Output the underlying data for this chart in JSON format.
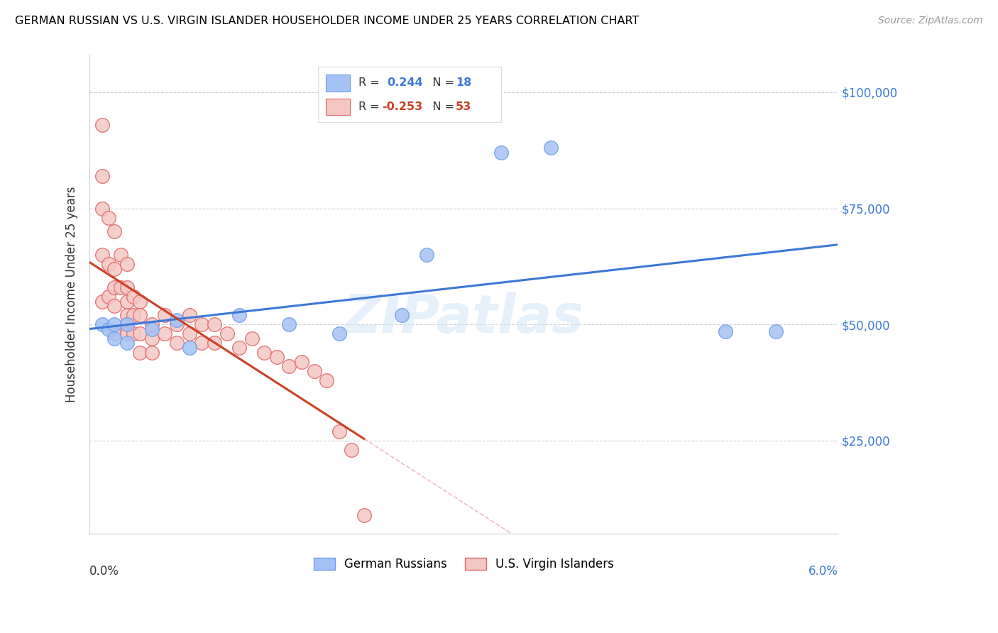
{
  "title": "GERMAN RUSSIAN VS U.S. VIRGIN ISLANDER HOUSEHOLDER INCOME UNDER 25 YEARS CORRELATION CHART",
  "source": "Source: ZipAtlas.com",
  "ylabel": "Householder Income Under 25 years",
  "ytick_labels": [
    "$25,000",
    "$50,000",
    "$75,000",
    "$100,000"
  ],
  "ytick_values": [
    25000,
    50000,
    75000,
    100000
  ],
  "xmin": 0.0,
  "xmax": 0.06,
  "ymin": 5000,
  "ymax": 108000,
  "blue_color": "#a4c2f4",
  "pink_color": "#f4c7c3",
  "blue_edge_color": "#6d9eeb",
  "pink_edge_color": "#e06666",
  "blue_line_color": "#3c78d8",
  "pink_line_color": "#cc4125",
  "watermark": "ZIPatlas",
  "blue_scatter_x": [
    0.001,
    0.0015,
    0.002,
    0.002,
    0.003,
    0.003,
    0.005,
    0.007,
    0.008,
    0.012,
    0.016,
    0.02,
    0.025,
    0.027,
    0.033,
    0.037,
    0.051,
    0.055
  ],
  "blue_scatter_y": [
    50000,
    49000,
    50000,
    47000,
    50000,
    46000,
    49000,
    51000,
    45000,
    52000,
    50000,
    48000,
    52000,
    65000,
    87000,
    88000,
    48500,
    48500
  ],
  "pink_scatter_x": [
    0.001,
    0.001,
    0.001,
    0.001,
    0.001,
    0.0015,
    0.0015,
    0.0015,
    0.002,
    0.002,
    0.002,
    0.002,
    0.002,
    0.0025,
    0.0025,
    0.003,
    0.003,
    0.003,
    0.003,
    0.003,
    0.003,
    0.0035,
    0.0035,
    0.0035,
    0.004,
    0.004,
    0.004,
    0.004,
    0.005,
    0.005,
    0.005,
    0.006,
    0.006,
    0.007,
    0.007,
    0.008,
    0.008,
    0.009,
    0.009,
    0.01,
    0.01,
    0.011,
    0.012,
    0.013,
    0.014,
    0.015,
    0.016,
    0.017,
    0.018,
    0.019,
    0.02,
    0.021,
    0.022
  ],
  "pink_scatter_y": [
    93000,
    82000,
    75000,
    65000,
    55000,
    73000,
    63000,
    56000,
    70000,
    62000,
    58000,
    54000,
    48000,
    65000,
    58000,
    63000,
    58000,
    55000,
    52000,
    50000,
    48000,
    56000,
    52000,
    48000,
    55000,
    52000,
    48000,
    44000,
    50000,
    47000,
    44000,
    52000,
    48000,
    50000,
    46000,
    52000,
    48000,
    50000,
    46000,
    50000,
    46000,
    48000,
    45000,
    47000,
    44000,
    43000,
    41000,
    42000,
    40000,
    38000,
    27000,
    23000,
    9000
  ]
}
